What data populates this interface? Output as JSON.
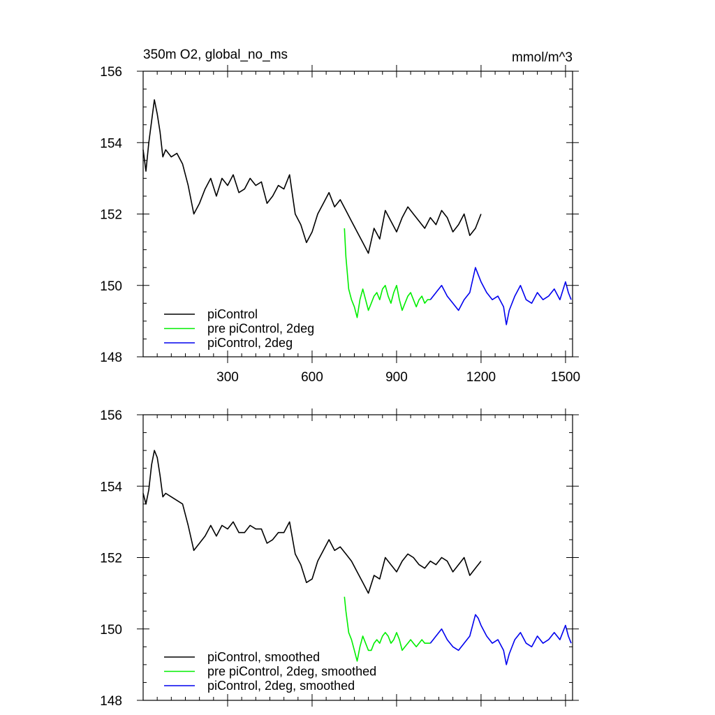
{
  "colors": {
    "piControl": "#000000",
    "pre_piControl_2deg": "#00ee00",
    "piControl_2deg": "#0000ee"
  },
  "chart_data": [
    {
      "type": "line",
      "title_left": "350m O2, global_no_ms",
      "title_right": "mmol/m^3",
      "xlabel": "",
      "ylabel": "",
      "xlim": [
        0,
        1525
      ],
      "ylim": [
        148,
        156
      ],
      "xticks": [
        300,
        600,
        900,
        1200,
        1500
      ],
      "xtick_labels": [
        "300",
        "600",
        "900",
        "1200",
        "1500"
      ],
      "yticks": [
        148,
        150,
        152,
        154,
        156
      ],
      "ytick_labels": [
        "148",
        "150",
        "152",
        "154",
        "156"
      ],
      "legend": "bottom-left",
      "series": [
        {
          "name": "piControl",
          "color": "#000000",
          "x": [
            0,
            10,
            20,
            30,
            40,
            50,
            60,
            70,
            80,
            100,
            120,
            140,
            160,
            180,
            200,
            220,
            240,
            260,
            280,
            300,
            320,
            340,
            360,
            380,
            400,
            420,
            440,
            460,
            480,
            500,
            520,
            540,
            560,
            580,
            600,
            620,
            640,
            660,
            680,
            700,
            720,
            740,
            760,
            780,
            800,
            820,
            840,
            860,
            880,
            900,
            920,
            940,
            960,
            980,
            1000,
            1020,
            1040,
            1060,
            1080,
            1100,
            1120,
            1140,
            1160,
            1180,
            1200
          ],
          "y": [
            153.8,
            153.2,
            154.0,
            154.6,
            155.2,
            154.8,
            154.3,
            153.6,
            153.8,
            153.6,
            153.7,
            153.4,
            152.8,
            152.0,
            152.3,
            152.7,
            153.0,
            152.5,
            153.0,
            152.8,
            153.1,
            152.6,
            152.7,
            153.0,
            152.8,
            152.9,
            152.3,
            152.5,
            152.8,
            152.7,
            153.1,
            152.0,
            151.7,
            151.2,
            151.5,
            152.0,
            152.3,
            152.6,
            152.2,
            152.4,
            152.1,
            151.8,
            151.5,
            151.2,
            150.9,
            151.6,
            151.3,
            152.1,
            151.8,
            151.5,
            151.9,
            152.2,
            152.0,
            151.8,
            151.6,
            151.9,
            151.7,
            152.1,
            151.9,
            151.5,
            151.7,
            152.0,
            151.4,
            151.6,
            152.0
          ]
        },
        {
          "name": "pre piControl, 2deg",
          "color": "#00ee00",
          "x": [
            715,
            720,
            730,
            740,
            750,
            760,
            770,
            780,
            790,
            800,
            810,
            820,
            830,
            840,
            850,
            860,
            870,
            880,
            890,
            900,
            910,
            920,
            930,
            940,
            950,
            960,
            970,
            980,
            990,
            1000,
            1010,
            1020
          ],
          "y": [
            151.6,
            150.8,
            149.9,
            149.6,
            149.4,
            149.1,
            149.6,
            149.9,
            149.6,
            149.3,
            149.5,
            149.7,
            149.8,
            149.6,
            149.9,
            150.0,
            149.7,
            149.5,
            149.8,
            150.0,
            149.6,
            149.3,
            149.5,
            149.7,
            149.8,
            149.6,
            149.4,
            149.6,
            149.7,
            149.5,
            149.6,
            149.6
          ]
        },
        {
          "name": "piControl, 2deg",
          "color": "#0000ee",
          "x": [
            1020,
            1030,
            1040,
            1060,
            1080,
            1100,
            1120,
            1140,
            1160,
            1180,
            1190,
            1200,
            1220,
            1240,
            1260,
            1280,
            1290,
            1300,
            1320,
            1340,
            1360,
            1380,
            1400,
            1420,
            1440,
            1460,
            1480,
            1500,
            1510,
            1520
          ],
          "y": [
            149.6,
            149.7,
            149.8,
            150.0,
            149.7,
            149.5,
            149.3,
            149.6,
            149.8,
            150.5,
            150.3,
            150.1,
            149.8,
            149.6,
            149.7,
            149.4,
            148.9,
            149.3,
            149.7,
            150.0,
            149.6,
            149.5,
            149.8,
            149.6,
            149.7,
            149.9,
            149.6,
            150.1,
            149.8,
            149.6
          ]
        }
      ]
    },
    {
      "type": "line",
      "title_left": "",
      "title_right": "",
      "xlabel": "",
      "ylabel": "",
      "xlim": [
        0,
        1525
      ],
      "ylim": [
        148,
        156
      ],
      "xticks": [
        300,
        600,
        900,
        1200,
        1500
      ],
      "xtick_labels": [],
      "yticks": [
        148,
        150,
        152,
        154,
        156
      ],
      "ytick_labels": [
        "148",
        "150",
        "152",
        "154",
        "156"
      ],
      "legend": "bottom-left",
      "series": [
        {
          "name": "piControl, smoothed",
          "color": "#000000",
          "x": [
            0,
            10,
            20,
            30,
            40,
            50,
            60,
            70,
            80,
            100,
            120,
            140,
            160,
            180,
            200,
            220,
            240,
            260,
            280,
            300,
            320,
            340,
            360,
            380,
            400,
            420,
            440,
            460,
            480,
            500,
            520,
            540,
            560,
            580,
            600,
            620,
            640,
            660,
            680,
            700,
            720,
            740,
            760,
            780,
            800,
            820,
            840,
            860,
            880,
            900,
            920,
            940,
            960,
            980,
            1000,
            1020,
            1040,
            1060,
            1080,
            1100,
            1120,
            1140,
            1160,
            1180,
            1200
          ],
          "y": [
            153.8,
            153.5,
            153.9,
            154.6,
            155.0,
            154.8,
            154.3,
            153.7,
            153.8,
            153.7,
            153.6,
            153.5,
            152.9,
            152.2,
            152.4,
            152.6,
            152.9,
            152.6,
            152.9,
            152.8,
            153.0,
            152.7,
            152.7,
            152.9,
            152.8,
            152.8,
            152.4,
            152.5,
            152.7,
            152.7,
            153.0,
            152.1,
            151.8,
            151.3,
            151.4,
            151.9,
            152.2,
            152.5,
            152.2,
            152.3,
            152.1,
            151.9,
            151.6,
            151.3,
            151.0,
            151.5,
            151.4,
            152.0,
            151.8,
            151.6,
            151.9,
            152.1,
            152.0,
            151.8,
            151.7,
            151.9,
            151.8,
            152.0,
            151.9,
            151.6,
            151.8,
            152.0,
            151.5,
            151.7,
            151.9
          ]
        },
        {
          "name": "pre piControl, 2deg, smoothed",
          "color": "#00ee00",
          "x": [
            715,
            720,
            730,
            740,
            750,
            760,
            770,
            780,
            790,
            800,
            810,
            820,
            830,
            840,
            850,
            860,
            870,
            880,
            890,
            900,
            910,
            920,
            930,
            940,
            950,
            960,
            970,
            980,
            990,
            1000,
            1010,
            1020
          ],
          "y": [
            150.9,
            150.5,
            149.9,
            149.7,
            149.4,
            149.1,
            149.5,
            149.8,
            149.6,
            149.4,
            149.4,
            149.6,
            149.7,
            149.6,
            149.8,
            149.9,
            149.8,
            149.6,
            149.7,
            149.9,
            149.7,
            149.4,
            149.5,
            149.6,
            149.7,
            149.6,
            149.5,
            149.6,
            149.7,
            149.6,
            149.6,
            149.6
          ]
        },
        {
          "name": "piControl, 2deg, smoothed",
          "color": "#0000ee",
          "x": [
            1020,
            1030,
            1040,
            1060,
            1080,
            1100,
            1120,
            1140,
            1160,
            1180,
            1190,
            1200,
            1220,
            1240,
            1260,
            1280,
            1290,
            1300,
            1320,
            1340,
            1360,
            1380,
            1400,
            1420,
            1440,
            1460,
            1480,
            1500,
            1510,
            1520
          ],
          "y": [
            149.6,
            149.7,
            149.8,
            150.0,
            149.7,
            149.5,
            149.4,
            149.6,
            149.8,
            150.4,
            150.3,
            150.1,
            149.8,
            149.6,
            149.7,
            149.4,
            149.0,
            149.3,
            149.7,
            149.9,
            149.6,
            149.5,
            149.8,
            149.6,
            149.7,
            149.9,
            149.7,
            150.1,
            149.8,
            149.6
          ]
        }
      ]
    }
  ]
}
